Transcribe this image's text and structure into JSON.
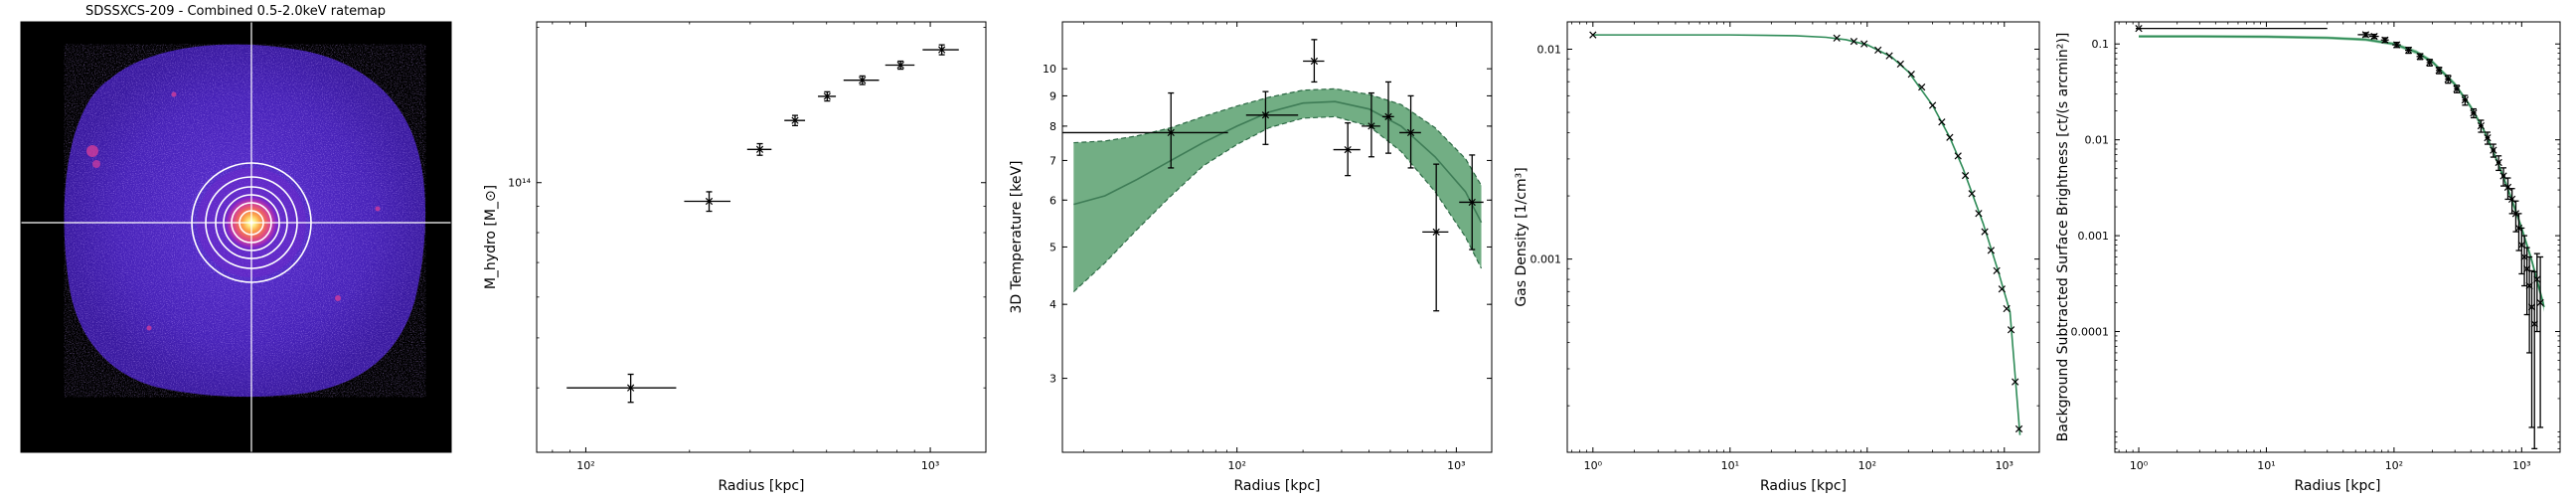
{
  "image_panel": {
    "title": "SDSSXCS-209 - Combined 0.5-2.0keV ratemap",
    "colormap": [
      "#000004",
      "#2b0a6b",
      "#5a1fb5",
      "#9b2fd6",
      "#d23c9a",
      "#f06a5a",
      "#fca94a",
      "#fdf08a",
      "#ffffff"
    ],
    "background_color": "#000000",
    "contour_color": "#ffffff"
  },
  "chart_data": [
    {
      "type": "scatter",
      "name": "hydrostatic-mass-profile",
      "xlabel": "Radius [kpc]",
      "ylabel": "M_hydro [M_⊙]",
      "xscale": "log",
      "yscale": "log",
      "xlim": [
        72,
        1450
      ],
      "ylim": [
        30000000000000.0,
        205000000000000.0
      ],
      "x_ticks": [
        {
          "value": 100,
          "label": "10²"
        },
        {
          "value": 1000,
          "label": "10³"
        }
      ],
      "y_ticks": [
        {
          "value": 100000000000000.0,
          "label": "10¹⁴"
        }
      ],
      "points": [
        {
          "x": 135,
          "xerr": [
            47,
            48
          ],
          "y": 40000000000000.0,
          "yerr": [
            2500000000000.0,
            2500000000000.0
          ]
        },
        {
          "x": 228,
          "xerr": [
            35,
            35
          ],
          "y": 92000000000000.0,
          "yerr": [
            4000000000000.0,
            4000000000000.0
          ]
        },
        {
          "x": 320,
          "xerr": [
            26,
            26
          ],
          "y": 116000000000000.0,
          "yerr": [
            3000000000000.0,
            3000000000000.0
          ]
        },
        {
          "x": 405,
          "xerr": [
            28,
            28
          ],
          "y": 132000000000000.0,
          "yerr": [
            3000000000000.0,
            3000000000000.0
          ]
        },
        {
          "x": 502,
          "xerr": [
            30,
            30
          ],
          "y": 147000000000000.0,
          "yerr": [
            3000000000000.0,
            3000000000000.0
          ]
        },
        {
          "x": 635,
          "xerr": [
            75,
            75
          ],
          "y": 158000000000000.0,
          "yerr": [
            3000000000000.0,
            3000000000000.0
          ]
        },
        {
          "x": 820,
          "xerr": [
            80,
            80
          ],
          "y": 169000000000000.0,
          "yerr": [
            3000000000000.0,
            3000000000000.0
          ]
        },
        {
          "x": 1080,
          "xerr": [
            130,
            130
          ],
          "y": 181000000000000.0,
          "yerr": [
            4000000000000.0,
            4000000000000.0
          ]
        }
      ],
      "colors": {
        "points": "#000000"
      }
    },
    {
      "type": "line",
      "name": "temperature-profile",
      "xlabel": "Radius [kpc]",
      "ylabel": "3D Temperature [keV]",
      "xscale": "log",
      "yscale": "log",
      "xlim": [
        16,
        1450
      ],
      "ylim": [
        2.25,
        12.0
      ],
      "x_ticks": [
        {
          "value": 100,
          "label": "10²"
        },
        {
          "value": 1000,
          "label": "10³"
        }
      ],
      "y_ticks": [
        {
          "value": 3,
          "label": "3"
        },
        {
          "value": 4,
          "label": "4"
        },
        {
          "value": 5,
          "label": "5"
        },
        {
          "value": 6,
          "label": "6"
        },
        {
          "value": 7,
          "label": "7"
        },
        {
          "value": 8,
          "label": "8"
        },
        {
          "value": 9,
          "label": "9"
        },
        {
          "value": 10,
          "label": "10"
        }
      ],
      "model": {
        "x": [
          18,
          25,
          35,
          50,
          70,
          100,
          140,
          200,
          280,
          400,
          560,
          800,
          1100,
          1300
        ],
        "y": [
          5.9,
          6.1,
          6.5,
          7.0,
          7.5,
          8.0,
          8.45,
          8.75,
          8.8,
          8.55,
          8.0,
          7.1,
          6.2,
          5.5
        ],
        "upper": [
          7.5,
          7.55,
          7.7,
          7.95,
          8.3,
          8.65,
          8.95,
          9.2,
          9.25,
          9.05,
          8.7,
          7.95,
          7.05,
          6.35
        ],
        "lower": [
          4.2,
          4.7,
          5.35,
          6.1,
          6.85,
          7.45,
          7.95,
          8.25,
          8.3,
          8.0,
          7.25,
          6.2,
          5.2,
          4.6
        ]
      },
      "points": [
        {
          "x": 50,
          "xerr": [
            34,
            41
          ],
          "y": 7.8,
          "yerr": [
            1.0,
            1.3
          ]
        },
        {
          "x": 135,
          "xerr": [
            25,
            55
          ],
          "y": 8.35,
          "yerr": [
            0.9,
            0.8
          ]
        },
        {
          "x": 225,
          "xerr": [
            25,
            25
          ],
          "y": 10.3,
          "yerr": [
            0.8,
            0.9
          ]
        },
        {
          "x": 320,
          "xerr": [
            45,
            45
          ],
          "y": 7.3,
          "yerr": [
            0.7,
            0.8
          ]
        },
        {
          "x": 410,
          "xerr": [
            40,
            40
          ],
          "y": 8.0,
          "yerr": [
            0.9,
            1.1
          ]
        },
        {
          "x": 490,
          "xerr": [
            30,
            30
          ],
          "y": 8.3,
          "yerr": [
            1.1,
            1.2
          ]
        },
        {
          "x": 620,
          "xerr": [
            70,
            70
          ],
          "y": 7.8,
          "yerr": [
            1.0,
            1.2
          ]
        },
        {
          "x": 810,
          "xerr": [
            110,
            110
          ],
          "y": 5.3,
          "yerr": [
            1.4,
            1.6
          ]
        },
        {
          "x": 1180,
          "xerr": [
            150,
            150
          ],
          "y": 5.95,
          "yerr": [
            1.0,
            1.2
          ]
        }
      ],
      "colors": {
        "band": "#6aaa7d",
        "band_edge": "#2d6a45",
        "model": "#3e7c56",
        "points": "#000000"
      }
    },
    {
      "type": "line",
      "name": "gas-density-profile",
      "xlabel": "Radius [kpc]",
      "ylabel": "Gas Density [1/cm³]",
      "xscale": "log",
      "yscale": "log",
      "xlim": [
        0.65,
        1800
      ],
      "ylim": [
        0.00012,
        0.0135
      ],
      "x_ticks": [
        {
          "value": 1,
          "label": "10⁰"
        },
        {
          "value": 10,
          "label": "10¹"
        },
        {
          "value": 100,
          "label": "10²"
        },
        {
          "value": 1000,
          "label": "10³"
        }
      ],
      "y_ticks": [
        {
          "value": 0.001,
          "label": "0.001"
        },
        {
          "value": 0.01,
          "label": "0.01"
        }
      ],
      "model": {
        "x": [
          1,
          3,
          10,
          30,
          50,
          70,
          100,
          150,
          200,
          300,
          400,
          500,
          700,
          900,
          1100,
          1300
        ],
        "y": [
          0.0117,
          0.0117,
          0.0117,
          0.0116,
          0.0114,
          0.0111,
          0.0105,
          0.0092,
          0.0078,
          0.0054,
          0.0038,
          0.0027,
          0.00148,
          0.00088,
          0.00056,
          0.000145
        ]
      },
      "points": [
        {
          "x": 1,
          "y": 0.0117
        },
        {
          "x": 60,
          "y": 0.0113
        },
        {
          "x": 80,
          "y": 0.0109
        },
        {
          "x": 95,
          "y": 0.0106
        },
        {
          "x": 120,
          "y": 0.0099
        },
        {
          "x": 145,
          "y": 0.0093
        },
        {
          "x": 175,
          "y": 0.0085
        },
        {
          "x": 210,
          "y": 0.0076
        },
        {
          "x": 250,
          "y": 0.0066
        },
        {
          "x": 300,
          "y": 0.0054
        },
        {
          "x": 350,
          "y": 0.0045
        },
        {
          "x": 400,
          "y": 0.0038
        },
        {
          "x": 460,
          "y": 0.0031
        },
        {
          "x": 520,
          "y": 0.0025
        },
        {
          "x": 580,
          "y": 0.00205
        },
        {
          "x": 650,
          "y": 0.00165
        },
        {
          "x": 720,
          "y": 0.00135
        },
        {
          "x": 800,
          "y": 0.0011
        },
        {
          "x": 880,
          "y": 0.00088
        },
        {
          "x": 960,
          "y": 0.00072
        },
        {
          "x": 1040,
          "y": 0.00058
        },
        {
          "x": 1120,
          "y": 0.00046
        },
        {
          "x": 1200,
          "y": 0.00026
        },
        {
          "x": 1280,
          "y": 0.000155
        }
      ],
      "colors": {
        "model": "#2e8b57",
        "points": "#000000"
      }
    },
    {
      "type": "line",
      "name": "surface-brightness-profile",
      "xlabel": "Radius [kpc]",
      "ylabel": "Background Subtracted Surface Brightness [ct/(s arcmin²)]",
      "xscale": "log",
      "yscale": "log",
      "xlim": [
        0.65,
        2000
      ],
      "ylim": [
        5.5e-06,
        0.17
      ],
      "x_ticks": [
        {
          "value": 1,
          "label": "10⁰"
        },
        {
          "value": 10,
          "label": "10¹"
        },
        {
          "value": 100,
          "label": "10²"
        },
        {
          "value": 1000,
          "label": "10³"
        }
      ],
      "y_ticks": [
        {
          "value": 0.0001,
          "label": "0.0001"
        },
        {
          "value": 0.001,
          "label": "0.001"
        },
        {
          "value": 0.01,
          "label": "0.01"
        },
        {
          "value": 0.1,
          "label": "0.1"
        }
      ],
      "model": {
        "x": [
          1,
          3,
          10,
          30,
          60,
          100,
          150,
          200,
          300,
          400,
          500,
          600,
          700,
          800,
          900,
          1000,
          1200,
          1500
        ],
        "y": [
          0.12,
          0.12,
          0.119,
          0.116,
          0.111,
          0.1,
          0.082,
          0.065,
          0.038,
          0.022,
          0.013,
          0.0075,
          0.0045,
          0.0028,
          0.0018,
          0.0012,
          0.00055,
          0.00018
        ],
        "upper": [
          0.124,
          0.124,
          0.123,
          0.12,
          0.115,
          0.104,
          0.086,
          0.068,
          0.04,
          0.0232,
          0.0138,
          0.008,
          0.0048,
          0.003,
          0.00195,
          0.0013,
          0.0006,
          0.0002
        ],
        "lower": [
          0.116,
          0.116,
          0.115,
          0.112,
          0.107,
          0.096,
          0.078,
          0.062,
          0.036,
          0.0208,
          0.0122,
          0.007,
          0.0042,
          0.0026,
          0.00165,
          0.0011,
          0.0005,
          0.00016
        ]
      },
      "points": [
        {
          "x": 1,
          "xerr": [
            0,
            29
          ],
          "y": 0.145,
          "yerr": [
            0,
            0
          ]
        },
        {
          "x": 60,
          "xerr": [
            8,
            8
          ],
          "y": 0.125,
          "yerr": [
            0.006,
            0.006
          ]
        },
        {
          "x": 70,
          "xerr": [
            6,
            6
          ],
          "y": 0.12,
          "yerr": [
            0.006,
            0.006
          ]
        },
        {
          "x": 85,
          "xerr": [
            6,
            6
          ],
          "y": 0.11,
          "yerr": [
            0.006,
            0.006
          ]
        },
        {
          "x": 105,
          "xerr": [
            8,
            8
          ],
          "y": 0.098,
          "yerr": [
            0.006,
            0.006
          ]
        },
        {
          "x": 130,
          "xerr": [
            8,
            8
          ],
          "y": 0.086,
          "yerr": [
            0.006,
            0.006
          ]
        },
        {
          "x": 160,
          "xerr": [
            10,
            10
          ],
          "y": 0.074,
          "yerr": [
            0.005,
            0.005
          ]
        },
        {
          "x": 190,
          "xerr": [
            10,
            10
          ],
          "y": 0.064,
          "yerr": [
            0.005,
            0.005
          ]
        },
        {
          "x": 225,
          "xerr": [
            12,
            12
          ],
          "y": 0.053,
          "yerr": [
            0.004,
            0.004
          ]
        },
        {
          "x": 265,
          "xerr": [
            14,
            14
          ],
          "y": 0.043,
          "yerr": [
            0.004,
            0.004
          ]
        },
        {
          "x": 310,
          "xerr": [
            15,
            15
          ],
          "y": 0.034,
          "yerr": [
            0.003,
            0.003
          ]
        },
        {
          "x": 360,
          "xerr": [
            18,
            18
          ],
          "y": 0.026,
          "yerr": [
            0.003,
            0.003
          ]
        },
        {
          "x": 420,
          "xerr": [
            20,
            20
          ],
          "y": 0.019,
          "yerr": [
            0.002,
            0.002
          ]
        },
        {
          "x": 480,
          "xerr": [
            20,
            20
          ],
          "y": 0.014,
          "yerr": [
            0.002,
            0.002
          ]
        },
        {
          "x": 540,
          "xerr": [
            22,
            22
          ],
          "y": 0.0105,
          "yerr": [
            0.0015,
            0.0015
          ]
        },
        {
          "x": 600,
          "xerr": [
            24,
            24
          ],
          "y": 0.0078,
          "yerr": [
            0.0012,
            0.0012
          ]
        },
        {
          "x": 660,
          "xerr": [
            25,
            25
          ],
          "y": 0.0058,
          "yerr": [
            0.001,
            0.001
          ]
        },
        {
          "x": 720,
          "xerr": [
            25,
            25
          ],
          "y": 0.0042,
          "yerr": [
            0.0009,
            0.0009
          ]
        },
        {
          "x": 780,
          "xerr": [
            25,
            25
          ],
          "y": 0.0032,
          "yerr": [
            0.0008,
            0.0008
          ]
        },
        {
          "x": 840,
          "xerr": [
            25,
            25
          ],
          "y": 0.0024,
          "yerr": [
            0.0007,
            0.0007
          ]
        },
        {
          "x": 900,
          "xerr": [
            25,
            25
          ],
          "y": 0.0017,
          "yerr": [
            0.0006,
            0.0006
          ]
        },
        {
          "x": 950,
          "xerr": [
            25,
            25
          ],
          "y": 0.0012,
          "yerr": [
            0.0005,
            0.0005
          ]
        },
        {
          "x": 1000,
          "xerr": [
            25,
            25
          ],
          "y": 0.0008,
          "yerr": [
            0.0004,
            0.0004
          ]
        },
        {
          "x": 1050,
          "xerr": [
            25,
            25
          ],
          "y": 0.0006,
          "yerr": [
            0.0003,
            0.0004
          ]
        },
        {
          "x": 1100,
          "xerr": [
            25,
            25
          ],
          "y": 0.00045,
          "yerr": [
            0.0003,
            0.0003
          ]
        },
        {
          "x": 1150,
          "xerr": [
            25,
            25
          ],
          "y": 0.0003,
          "yerr": [
            0.00024,
            0.0003
          ]
        },
        {
          "x": 1200,
          "xerr": [
            25,
            25
          ],
          "y": 0.00018,
          "yerr": [
            0.00017,
            0.00025
          ]
        },
        {
          "x": 1260,
          "xerr": [
            25,
            25
          ],
          "y": 0.00012,
          "yerr": [
            0.000114,
            0.0003
          ]
        },
        {
          "x": 1320,
          "xerr": [
            25,
            25
          ],
          "y": 0.00035,
          "yerr": [
            0.00025,
            0.0003
          ]
        },
        {
          "x": 1400,
          "xerr": [
            30,
            30
          ],
          "y": 0.0002,
          "yerr": [
            0.00019,
            0.0004
          ]
        }
      ],
      "colors": {
        "band": "#8fc6a1",
        "model": "#2e8b57",
        "points": "#000000"
      }
    }
  ]
}
